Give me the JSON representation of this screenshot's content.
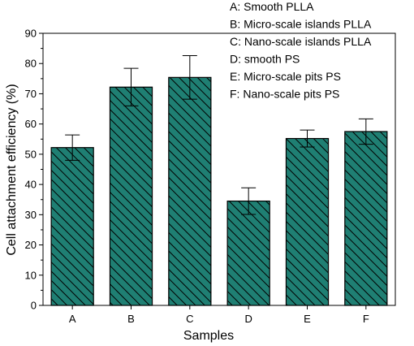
{
  "chart_data": {
    "type": "bar",
    "categories": [
      "A",
      "B",
      "C",
      "D",
      "E",
      "F"
    ],
    "values": [
      52.2,
      72.2,
      75.4,
      34.5,
      55.2,
      57.5
    ],
    "errors": [
      4.2,
      6.2,
      7.2,
      4.4,
      2.8,
      4.2
    ],
    "xlabel": "Samples",
    "ylabel": "Cell attachment efficiency (%)",
    "ylim": [
      0,
      90
    ],
    "yticks": [
      0,
      10,
      20,
      30,
      40,
      50,
      60,
      70,
      80,
      90
    ],
    "legend": [
      "A: Smooth PLLA",
      "B: Micro-scale islands PLLA",
      "C: Nano-scale islands PLLA",
      "D: smooth PS",
      "E: Micro-scale pits PS",
      "F:  Nano-scale pits PS"
    ],
    "legend_position": "top-right",
    "bar_color": "#1f7f73",
    "hatch_color": "#000000",
    "grid": false
  }
}
